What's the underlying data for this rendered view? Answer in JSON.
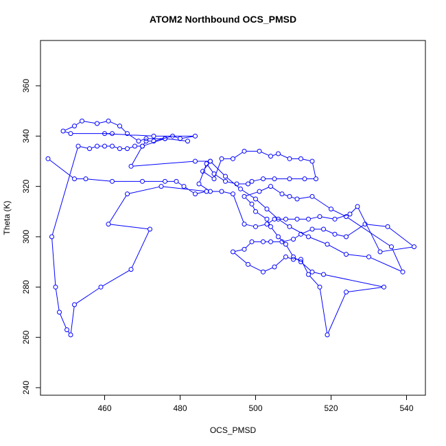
{
  "chart_data": {
    "type": "line",
    "title": "ATOM2 Northbound OCS_PMSD",
    "xlabel": "OCS_PMSD",
    "ylabel": "Theta (K)",
    "xlim": [
      443,
      545
    ],
    "ylim": [
      237,
      378
    ],
    "x_ticks": [
      460,
      480,
      500,
      520,
      540
    ],
    "y_ticks": [
      240,
      260,
      280,
      300,
      320,
      340,
      360
    ],
    "grid": false,
    "line_color": "#0000ff",
    "marker": "open-circle",
    "series": [
      {
        "x": [
          445,
          452,
          455,
          462,
          470,
          476,
          479,
          481,
          484,
          487,
          475,
          466,
          461,
          472,
          467,
          459,
          452,
          451,
          450,
          448,
          447,
          446,
          453,
          456,
          458,
          460,
          462,
          464,
          466,
          468,
          470,
          471,
          473,
          478,
          480,
          484,
          473,
          460,
          462,
          451,
          449,
          452,
          454,
          458,
          461,
          464,
          466,
          469,
          471,
          476,
          482,
          476,
          470,
          467,
          484,
          488,
          486,
          489,
          491,
          494,
          497,
          501,
          504,
          506,
          509,
          512,
          515,
          516,
          513,
          509,
          505,
          502,
          499,
          498,
          495,
          492,
          489,
          487,
          485,
          488,
          491,
          494,
          497,
          500,
          503,
          505,
          508,
          511,
          514,
          517,
          521,
          525,
          527,
          533,
          542,
          535,
          529,
          524,
          521,
          518,
          515,
          512,
          510,
          507,
          504,
          502,
          499,
          497,
          494,
          498,
          502,
          505,
          508,
          510,
          512,
          514,
          517,
          519,
          524,
          534,
          518,
          515,
          512,
          510,
          508,
          506,
          504,
          503,
          500,
          499,
          497,
          501,
          504,
          507,
          509,
          511,
          515,
          520,
          524,
          536,
          539,
          530,
          524,
          519,
          514,
          509,
          506,
          503,
          500,
          496,
          492,
          488
        ],
        "y": [
          331,
          323,
          323,
          322,
          322,
          322,
          322,
          320,
          317,
          318,
          320,
          317,
          305,
          303,
          287,
          280,
          273,
          261,
          263,
          270,
          280,
          300,
          336,
          335,
          336,
          336,
          336,
          335,
          335,
          336,
          336,
          338,
          338,
          340,
          339,
          340,
          340,
          341,
          341,
          341,
          342,
          344,
          346,
          345,
          346,
          344,
          341,
          338,
          339,
          339,
          338,
          339,
          336,
          328,
          330,
          330,
          326,
          323,
          331,
          331,
          334,
          334,
          332,
          333,
          331,
          331,
          330,
          323,
          323,
          323,
          323,
          323,
          322,
          321,
          321,
          322,
          325,
          329,
          321,
          318,
          318,
          317,
          305,
          304,
          305,
          307,
          307,
          307,
          307,
          308,
          307,
          309,
          312,
          294,
          296,
          304,
          305,
          300,
          301,
          303,
          303,
          301,
          299,
          298,
          298,
          298,
          298,
          295,
          294,
          289,
          286,
          288,
          292,
          291,
          291,
          285,
          280,
          261,
          278,
          280,
          285,
          286,
          290,
          292,
          297,
          300,
          304,
          307,
          310,
          313,
          316,
          318,
          320,
          317,
          316,
          315,
          316,
          311,
          308,
          296,
          286,
          292,
          293,
          297,
          300,
          304,
          307,
          311,
          315,
          319,
          324,
          330
        ]
      }
    ]
  }
}
